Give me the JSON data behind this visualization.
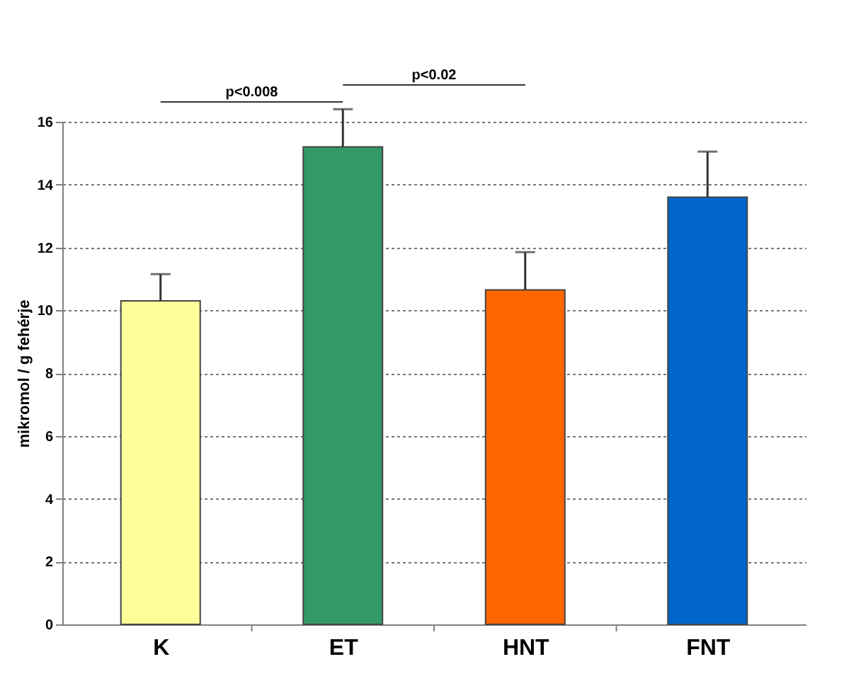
{
  "chart_data": {
    "type": "bar",
    "ylabel": "mikromol / g fehérje",
    "categories": [
      "K",
      "ET",
      "HNT",
      "FNT"
    ],
    "values": [
      10.3,
      15.2,
      10.65,
      13.6
    ],
    "colors": [
      "#ffff99",
      "#339966",
      "#ff6600",
      "#0066cc"
    ],
    "errors": [
      [
        10.3,
        11.15
      ],
      [
        15.2,
        16.4
      ],
      [
        10.65,
        11.85
      ],
      [
        13.6,
        15.05
      ]
    ],
    "ylim": [
      0,
      16
    ],
    "yticks": [
      0,
      2,
      4,
      6,
      8,
      10,
      12,
      14,
      16
    ],
    "grid": "y",
    "annotations": [
      "p<0.008",
      "p<0.02"
    ]
  }
}
